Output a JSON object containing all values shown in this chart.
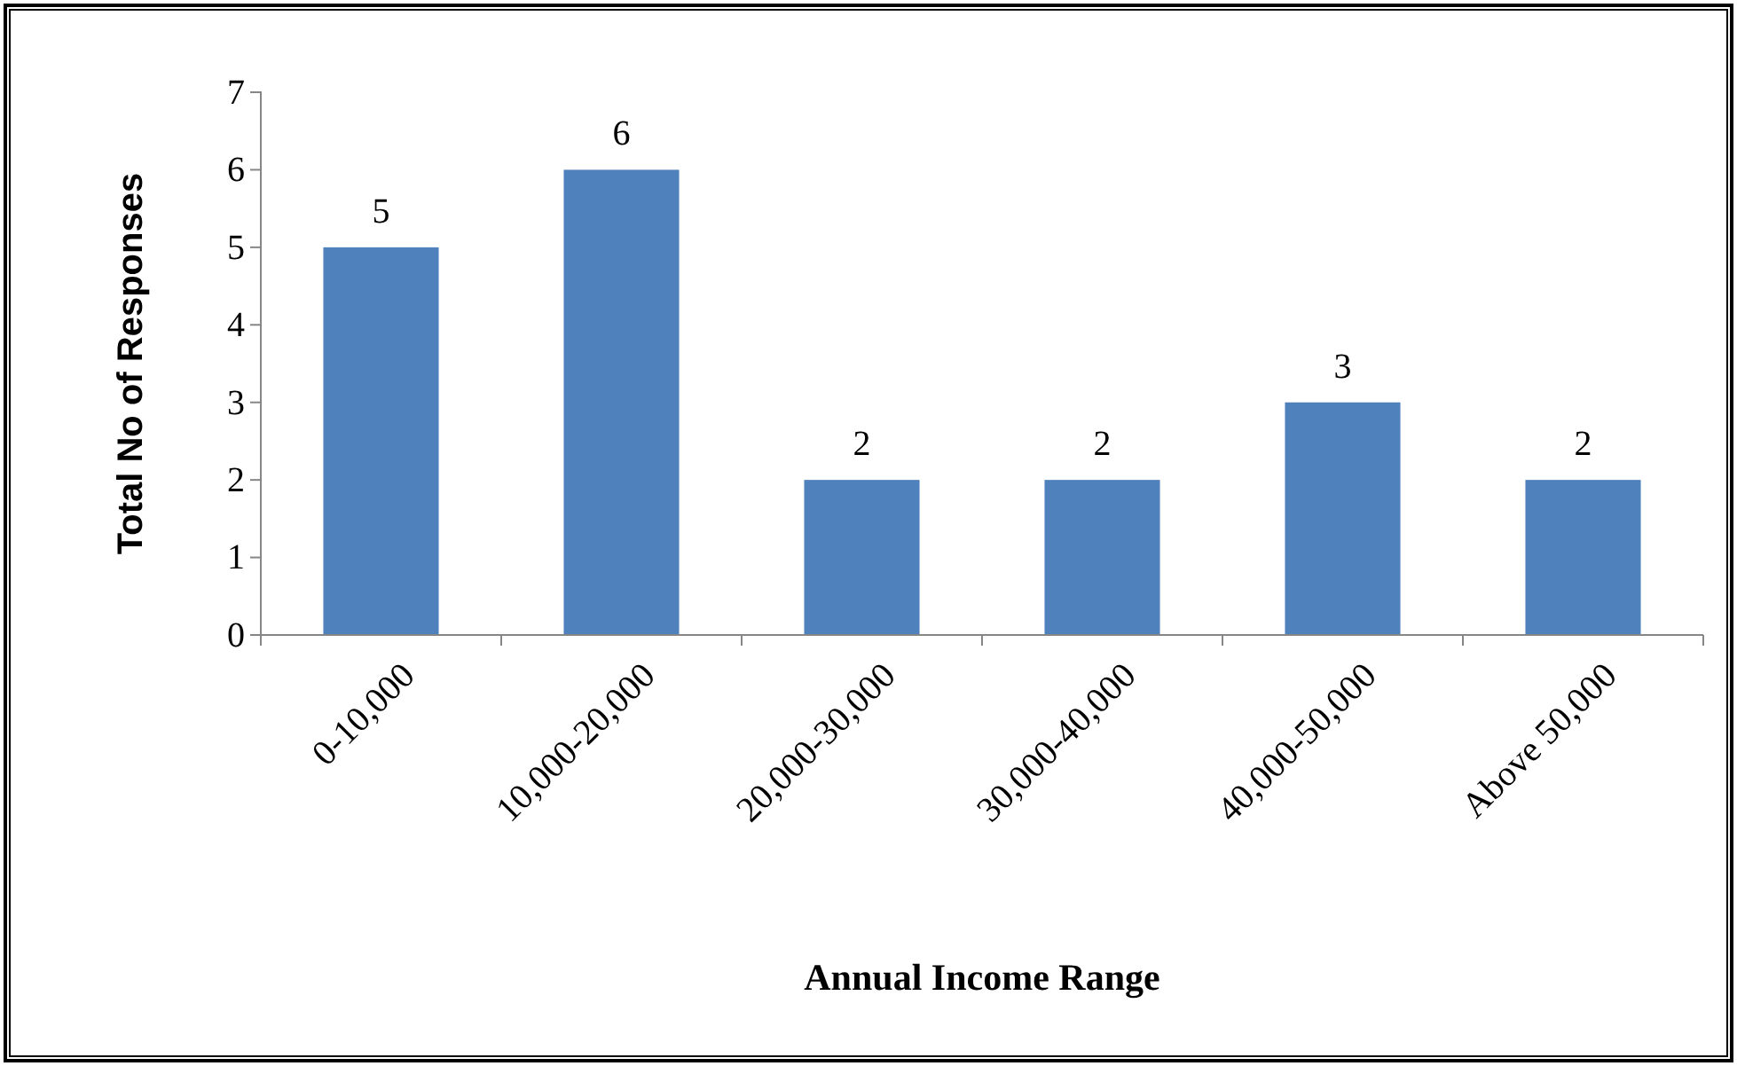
{
  "chart_data": {
    "type": "bar",
    "xlabel": "Annual Income Range",
    "ylabel": "Total No of Responses",
    "categories": [
      "0-10,000",
      "10,000-20,000",
      "20,000-30,000",
      "30,000-40,000",
      "40,000-50,000",
      "Above 50,000"
    ],
    "values": [
      5,
      6,
      2,
      2,
      3,
      2
    ],
    "color": "#4f81bd",
    "ylim": [
      0,
      7
    ],
    "yticks": [
      0,
      1,
      2,
      3,
      4,
      5,
      6,
      7
    ],
    "grid": false,
    "data_labels": true
  }
}
